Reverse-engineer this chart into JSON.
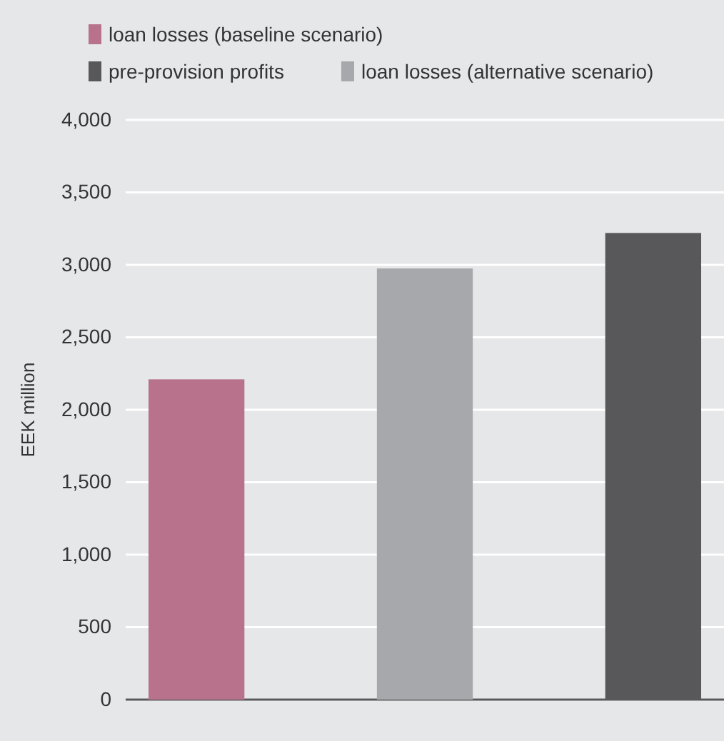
{
  "chart_data": {
    "type": "bar",
    "ylabel": "EEK million",
    "categories": [
      null,
      null,
      null
    ],
    "series": [
      {
        "name": "loan losses (baseline scenario)",
        "color": "#b8728c",
        "values": [
          2210,
          null,
          null
        ]
      },
      {
        "name": "pre-provision profits",
        "color": "#58585a",
        "values": [
          null,
          null,
          3220
        ]
      },
      {
        "name": "loan losses (alternative scenario)",
        "color": "#a7a8ab",
        "values": [
          null,
          2975,
          null
        ]
      }
    ],
    "ylim": [
      0,
      4000
    ],
    "yticks": [
      {
        "value": 0,
        "label": "0"
      },
      {
        "value": 500,
        "label": "500"
      },
      {
        "value": 1000,
        "label": "1,000"
      },
      {
        "value": 1500,
        "label": "1,500"
      },
      {
        "value": 2000,
        "label": "2,000"
      },
      {
        "value": 2500,
        "label": "2,500"
      },
      {
        "value": 3000,
        "label": "3,000"
      },
      {
        "value": 3500,
        "label": "3,500"
      },
      {
        "value": 4000,
        "label": "4,000"
      }
    ],
    "grid": "y",
    "legend": "top left",
    "tick_labels": "y"
  }
}
